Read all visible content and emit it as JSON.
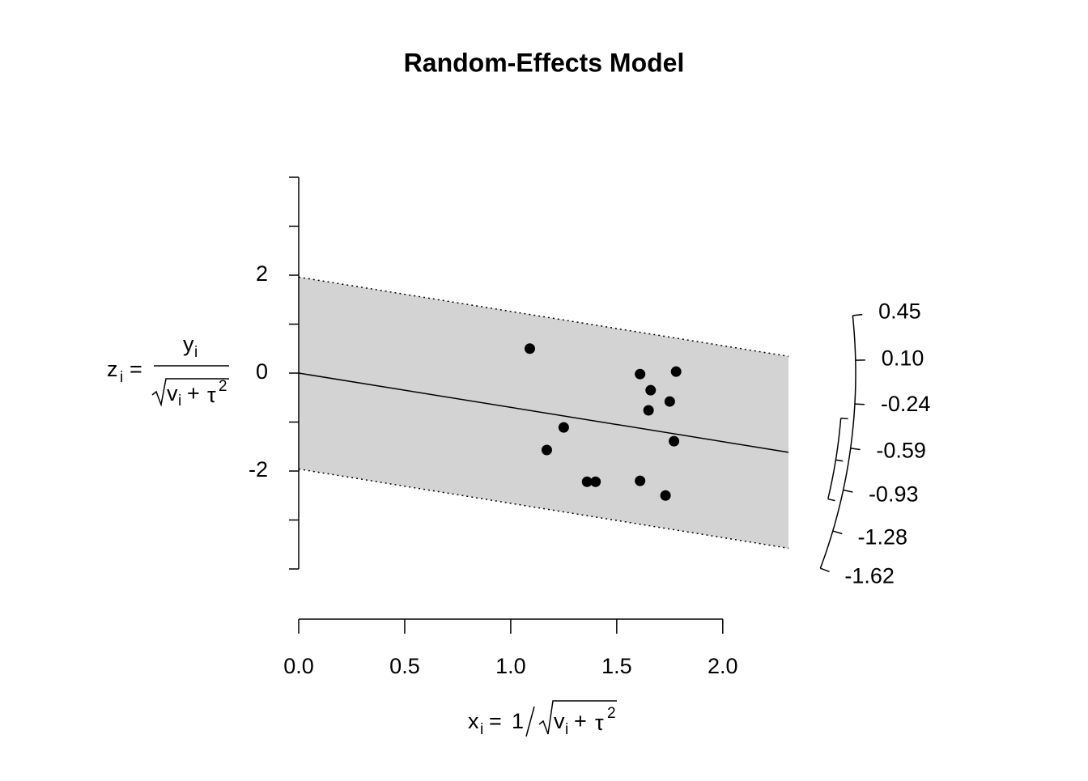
{
  "chart_data": {
    "type": "radial",
    "title": "Random-Effects Model",
    "ylabel": {
      "lhs": "z",
      "lhs_sub": "i",
      "eq": "=",
      "num": "y",
      "num_sub": "i",
      "den": "v",
      "den_sub": "i",
      "plus": "+",
      "tau": "τ",
      "sup": "2"
    },
    "xlabel": {
      "lhs": "x",
      "lhs_sub": "i",
      "eq": "=",
      "one": "1",
      "den": "v",
      "den_sub": "i",
      "plus": "+",
      "tau": "τ",
      "sup": "2"
    },
    "x": [
      1.09,
      1.17,
      1.25,
      1.36,
      1.4,
      1.61,
      1.61,
      1.66,
      1.65,
      1.73,
      1.75,
      1.77,
      1.78
    ],
    "y": [
      0.5,
      -1.57,
      -1.11,
      -2.22,
      -2.22,
      -0.02,
      -2.2,
      -0.35,
      -0.76,
      -2.5,
      -0.58,
      -1.39,
      0.03
    ],
    "color": "#000000",
    "estimate": -0.7,
    "ci": [
      -0.36,
      -1.03
    ],
    "band_halfwidth": 1.96,
    "band_color": "#d3d3d3",
    "xlim": [
      0,
      2.31
    ],
    "ylim": [
      -4,
      4
    ],
    "xticks": [
      {
        "value": 0,
        "label": "0.0"
      },
      0.5,
      {
        "value": 1,
        "label": "1.0"
      },
      1.5,
      {
        "value": 2,
        "label": "2.0"
      }
    ],
    "yticks": [
      -2,
      0,
      2
    ],
    "yminor_ticks": [
      -4,
      -3,
      -1,
      1,
      3,
      4
    ],
    "arc_ticks": [
      0.45,
      {
        "value": 0.1,
        "label": "0.10"
      },
      -0.24,
      -0.59,
      -0.93,
      -1.28,
      -1.62
    ]
  }
}
